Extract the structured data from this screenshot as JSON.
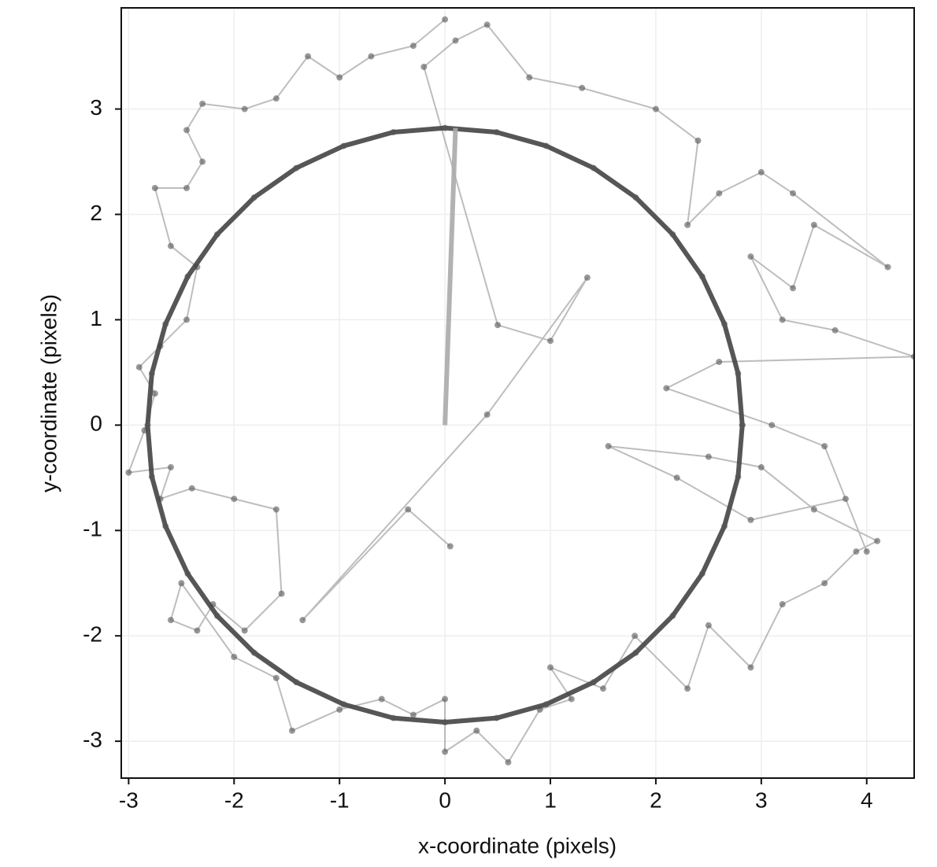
{
  "chart_data": {
    "type": "line",
    "x_label": "x-coordinate (pixels)",
    "y_label": "y-coordinate (pixels)",
    "xlim": [
      -3.07,
      4.45
    ],
    "ylim": [
      -3.35,
      3.96
    ],
    "xticks": [
      -3,
      -2,
      -1,
      0,
      1,
      2,
      3,
      4
    ],
    "yticks": [
      -3,
      -2,
      -1,
      0,
      1,
      2,
      3
    ],
    "grid": true,
    "series": [
      {
        "color": "#999999",
        "markers": true,
        "x": [
          0.0,
          -0.3,
          -0.7,
          -1.0,
          -1.3,
          -1.6,
          -1.9,
          -2.3,
          -2.45,
          -2.3,
          -2.45,
          -2.75,
          -2.6,
          -2.35,
          -2.45,
          -2.7,
          -2.9,
          -2.75,
          -2.85,
          -3.0,
          -2.6,
          -2.7,
          -2.4,
          -2.0,
          -1.6,
          -1.55,
          -1.9,
          -2.2,
          -2.35,
          -2.6,
          -2.5,
          -2.0,
          -1.6,
          -1.45,
          -1.0,
          -0.6,
          -0.3,
          0.0,
          0.0,
          0.3,
          0.6,
          0.9,
          1.2,
          1.0,
          1.5,
          1.8,
          2.3,
          2.5,
          2.9,
          3.2,
          3.6,
          3.9,
          4.1,
          3.5,
          3.0,
          2.5,
          1.55,
          2.2,
          2.9,
          3.8,
          4.0,
          3.6,
          3.1,
          2.1,
          2.6,
          4.45,
          3.7,
          3.2,
          2.9,
          3.3,
          3.5,
          4.2,
          3.3,
          3.0,
          2.6,
          2.3,
          2.4,
          2.0,
          1.3,
          0.8,
          0.4,
          0.1,
          -0.2,
          0.5,
          1.0,
          1.35,
          0.4,
          -1.35,
          -0.35,
          0.05
        ],
        "y": [
          3.85,
          3.6,
          3.5,
          3.3,
          3.5,
          3.1,
          3.0,
          3.05,
          2.8,
          2.5,
          2.25,
          2.25,
          1.7,
          1.5,
          1.0,
          0.75,
          0.55,
          0.3,
          -0.05,
          -0.45,
          -0.4,
          -0.7,
          -0.6,
          -0.7,
          -0.8,
          -1.6,
          -1.95,
          -1.7,
          -1.95,
          -1.85,
          -1.5,
          -2.2,
          -2.4,
          -2.9,
          -2.7,
          -2.6,
          -2.75,
          -2.6,
          -3.1,
          -2.9,
          -3.2,
          -2.7,
          -2.6,
          -2.3,
          -2.5,
          -2.0,
          -2.5,
          -1.9,
          -2.3,
          -1.7,
          -1.5,
          -1.2,
          -1.1,
          -0.8,
          -0.4,
          -0.3,
          -0.2,
          -0.5,
          -0.9,
          -0.7,
          -1.2,
          -0.2,
          0.0,
          0.35,
          0.6,
          0.65,
          0.9,
          1.0,
          1.6,
          1.3,
          1.9,
          1.5,
          2.2,
          2.4,
          2.2,
          1.9,
          2.7,
          3.0,
          3.2,
          3.3,
          3.8,
          3.65,
          3.4,
          0.95,
          0.8,
          1.4,
          0.1,
          -1.85,
          -0.8,
          -1.15
        ]
      },
      {
        "color": "#444444",
        "markers": true,
        "x": [
          2.82,
          2.78,
          2.65,
          2.44,
          2.16,
          1.81,
          1.41,
          0.96,
          0.49,
          0,
          -0.49,
          -0.96,
          -1.41,
          -1.81,
          -2.16,
          -2.44,
          -2.65,
          -2.78,
          -2.82,
          -2.78,
          -2.65,
          -2.44,
          -2.16,
          -1.81,
          -1.41,
          -0.96,
          -0.49,
          0,
          0.49,
          0.96,
          1.41,
          1.81,
          2.16,
          2.44,
          2.65,
          2.78,
          2.82
        ],
        "y": [
          0,
          0.49,
          0.96,
          1.41,
          1.81,
          2.16,
          2.44,
          2.65,
          2.78,
          2.82,
          2.78,
          2.65,
          2.44,
          2.16,
          1.81,
          1.41,
          0.96,
          0.49,
          0,
          -0.49,
          -0.96,
          -1.41,
          -1.81,
          -2.16,
          -2.44,
          -2.65,
          -2.78,
          -2.82,
          -2.78,
          -2.65,
          -2.44,
          -2.16,
          -1.81,
          -1.41,
          -0.96,
          -0.49,
          0
        ]
      },
      {
        "color": "#aaaaaa",
        "markers": false,
        "x": [
          0,
          0.1
        ],
        "y": [
          0,
          2.82
        ]
      }
    ]
  }
}
